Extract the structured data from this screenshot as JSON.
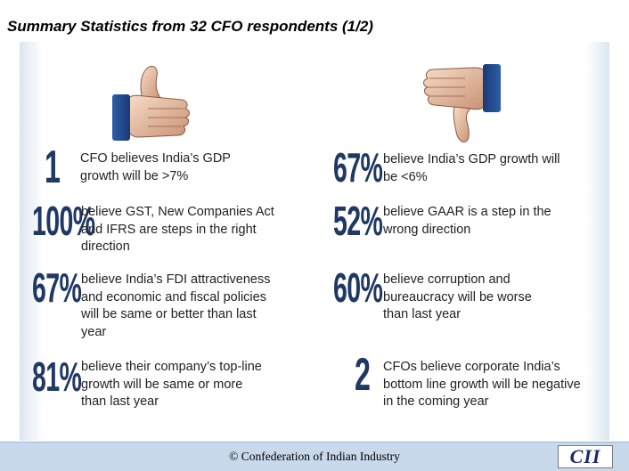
{
  "title": "Summary Statistics from 32 CFO respondents (1/2)",
  "icons": {
    "up": "thumbs-up-icon",
    "down": "thumbs-down-icon"
  },
  "colors": {
    "stat": "#1f3864",
    "footer_bg": "#c9d9ec",
    "logo_text": "#1b2a6b"
  },
  "left": [
    {
      "stat": "1",
      "text": "CFO believes India’s GDP growth will be >7%"
    },
    {
      "stat": "100%",
      "text": "believe GST, New Companies Act and IFRS are steps in the right direction"
    },
    {
      "stat": "67%",
      "text": "believe India’s FDI attractiveness and economic and fiscal policies will be same or better than last year"
    },
    {
      "stat": "81%",
      "text": "believe their company’s top-line growth will be same or more than last year"
    }
  ],
  "right": [
    {
      "stat": "67%",
      "text": "believe India’s GDP growth will be <6%"
    },
    {
      "stat": "52%",
      "text": "believe GAAR is a step in the wrong direction"
    },
    {
      "stat": "60%",
      "text": "believe corruption and bureaucracy will be worse than last year"
    },
    {
      "stat": "2",
      "text": "CFOs believe corporate India’s bottom line growth will be negative in the coming year"
    }
  ],
  "footer": {
    "copyright": "© Confederation of Indian Industry",
    "logo": "CII"
  }
}
